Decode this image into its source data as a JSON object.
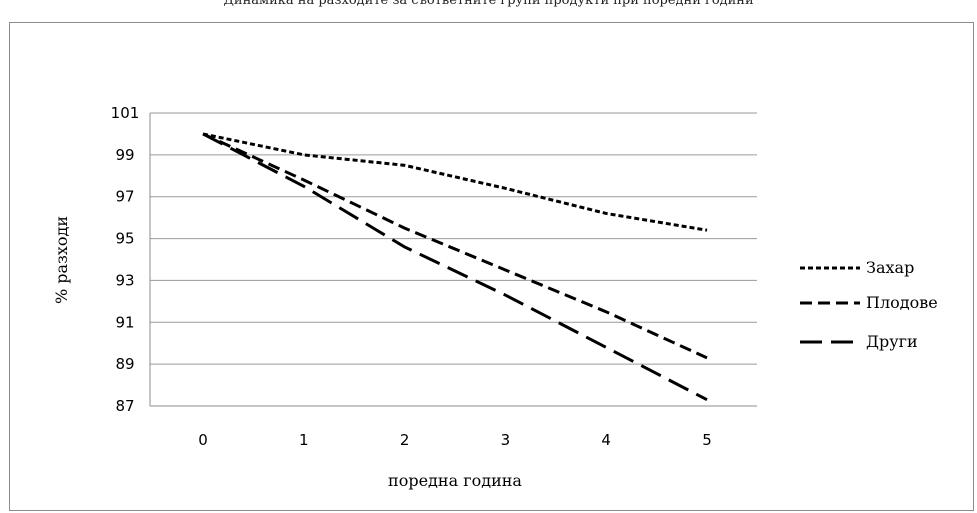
{
  "page": {
    "top_text": "Динамика на разходите за съответните групи продукти при поредни години"
  },
  "chart_data": {
    "type": "line",
    "title": "",
    "xlabel": "поредна година",
    "ylabel": "% разходи",
    "categories": [
      "0",
      "1",
      "2",
      "3",
      "4",
      "5"
    ],
    "x": [
      0,
      1,
      2,
      3,
      4,
      5
    ],
    "ylim": [
      87,
      101
    ],
    "yticks": [
      "87",
      "89",
      "91",
      "93",
      "95",
      "97",
      "99",
      "101"
    ],
    "grid": true,
    "legend_position": "right",
    "series": [
      {
        "name": "Захар",
        "values": [
          100,
          99.0,
          98.5,
          97.4,
          96.2,
          95.4
        ],
        "dash": "short-dash"
      },
      {
        "name": "Плодове",
        "values": [
          100,
          97.8,
          95.5,
          93.5,
          91.5,
          89.3
        ],
        "dash": "medium-dash"
      },
      {
        "name": "Други",
        "values": [
          100,
          97.5,
          94.6,
          92.3,
          89.8,
          87.3
        ],
        "dash": "long-dash"
      }
    ]
  }
}
